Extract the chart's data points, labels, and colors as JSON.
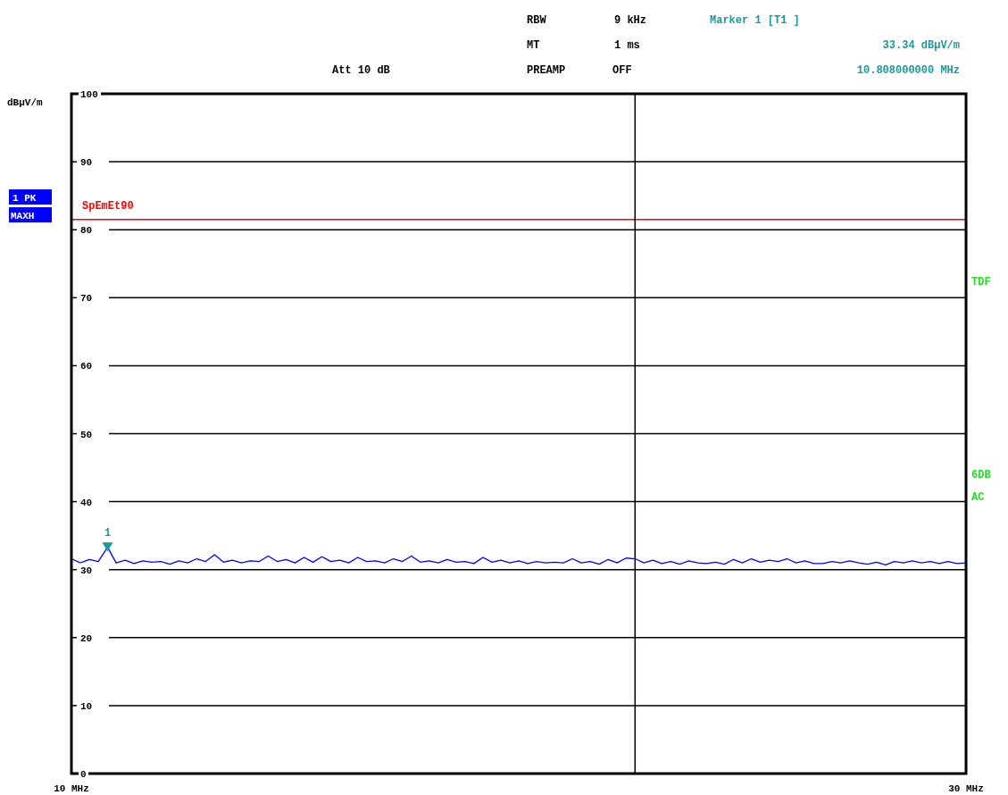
{
  "chart_data": {
    "type": "line",
    "ylabel": "dBµV/m",
    "xlim": [
      10,
      30
    ],
    "ylim": [
      0,
      100
    ],
    "xticks": [
      {
        "value": 10,
        "label": "10 MHz"
      },
      {
        "value": 30,
        "label": "30 MHz"
      }
    ],
    "yticks": [
      0,
      10,
      20,
      30,
      40,
      50,
      60,
      70,
      80,
      90,
      100
    ],
    "grid": "y",
    "legend": "left",
    "series": [
      {
        "name": "1 PK MAXH",
        "color": "#0000ff",
        "marker": "none",
        "x": [
          10,
          10.2,
          10.4,
          10.6,
          10.808,
          11,
          11.2,
          11.4,
          11.6,
          11.8,
          12,
          12.2,
          12.4,
          12.6,
          12.8,
          13,
          13.2,
          13.4,
          13.6,
          13.8,
          14,
          14.2,
          14.4,
          14.6,
          14.8,
          15,
          15.2,
          15.4,
          15.6,
          15.8,
          16,
          16.2,
          16.4,
          16.6,
          16.8,
          17,
          17.2,
          17.4,
          17.6,
          17.8,
          18,
          18.2,
          18.4,
          18.6,
          18.8,
          19,
          19.2,
          19.4,
          19.6,
          19.8,
          20,
          20.2,
          20.4,
          20.6,
          20.8,
          21,
          21.2,
          21.4,
          21.6,
          21.8,
          22,
          22.2,
          22.4,
          22.6,
          22.8,
          23,
          23.2,
          23.4,
          23.6,
          23.8,
          24,
          24.2,
          24.4,
          24.6,
          24.8,
          25,
          25.2,
          25.4,
          25.6,
          25.8,
          26,
          26.2,
          26.4,
          26.6,
          26.8,
          27,
          27.2,
          27.4,
          27.6,
          27.8,
          28,
          28.2,
          28.4,
          28.6,
          28.8,
          29,
          29.2,
          29.4,
          29.6,
          29.8,
          30
        ],
        "values": [
          31.6,
          31.0,
          31.5,
          31.2,
          33.3,
          31.0,
          31.4,
          30.9,
          31.3,
          31.1,
          31.2,
          30.8,
          31.3,
          31.0,
          31.6,
          31.2,
          32.2,
          31.1,
          31.4,
          31.0,
          31.3,
          31.2,
          32.0,
          31.2,
          31.5,
          31.0,
          31.8,
          31.1,
          31.9,
          31.2,
          31.4,
          31.0,
          31.8,
          31.2,
          31.3,
          31.0,
          31.6,
          31.2,
          32.0,
          31.1,
          31.3,
          31.0,
          31.5,
          31.1,
          31.2,
          30.9,
          31.8,
          31.1,
          31.4,
          31.0,
          31.3,
          30.9,
          31.2,
          31.0,
          31.1,
          31.0,
          31.6,
          31.0,
          31.2,
          30.8,
          31.5,
          31.0,
          31.7,
          31.6,
          31.0,
          31.4,
          30.9,
          31.2,
          30.8,
          31.3,
          31.0,
          30.9,
          31.1,
          30.8,
          31.5,
          31.0,
          31.6,
          31.1,
          31.4,
          31.2,
          31.6,
          31.0,
          31.3,
          30.9,
          30.9,
          31.2,
          31.0,
          31.3,
          31.0,
          30.8,
          31.1,
          30.7,
          31.2,
          31.0,
          31.3,
          31.0,
          31.2,
          30.9,
          31.2,
          30.9,
          31.0
        ]
      },
      {
        "type": "scatter",
        "color": "#1a9a9a",
        "marker": "triangle",
        "x": [
          10.808
        ],
        "values": [
          33.34
        ]
      }
    ],
    "ref_lines": [
      {
        "axis": "y",
        "value": 81.5,
        "label": "SpEmEt90",
        "color": "#ff0000"
      },
      {
        "axis": "x",
        "value": 22.6,
        "color": "#000000"
      }
    ],
    "annotations": [
      "Att 10 dB",
      "RBW",
      "9 kHz",
      "MT",
      "1 ms",
      "PREAMP",
      "OFF",
      "Marker 1 [T1 ]",
      "33.34 dBµV/m",
      "10.808000000 MHz",
      "TDF",
      "6DB",
      "AC",
      {
        "text": "1",
        "x": 10.808,
        "y": 33.34
      }
    ]
  }
}
